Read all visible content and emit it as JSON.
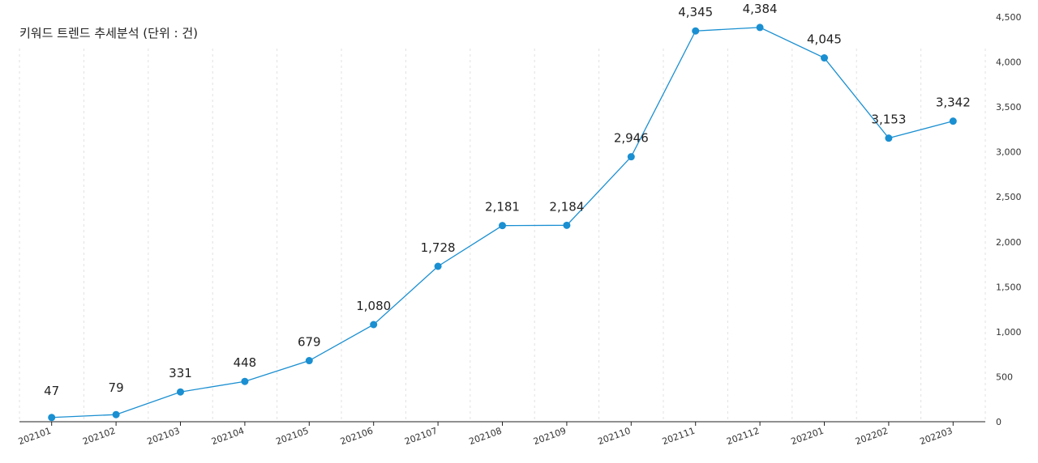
{
  "title": "키워드 트렌드 추세분석 (단위 : 건)",
  "chart_data": {
    "type": "line",
    "categories": [
      "202101",
      "202102",
      "202103",
      "202104",
      "202105",
      "202106",
      "202107",
      "202108",
      "202109",
      "202110",
      "202111",
      "202112",
      "202201",
      "202202",
      "202203"
    ],
    "values": [
      47,
      79,
      331,
      448,
      679,
      1080,
      1728,
      2181,
      2184,
      2946,
      4345,
      4384,
      4045,
      3153,
      3342
    ],
    "value_labels": [
      "47",
      "79",
      "331",
      "448",
      "679",
      "1,080",
      "1,728",
      "2,181",
      "2,184",
      "2,946",
      "4,345",
      "4,384",
      "4,045",
      "3,153",
      "3,342"
    ],
    "ylim": [
      0,
      4500
    ],
    "yticks": [
      "0",
      "500",
      "1,000",
      "1,500",
      "2,000",
      "2,500",
      "3,000",
      "3,500",
      "4,000",
      "4,500"
    ],
    "y_axis_position": "right",
    "grid": "vertical dotted",
    "line_color": "#1a8fd1",
    "marker_color": "#1a8fd1"
  }
}
